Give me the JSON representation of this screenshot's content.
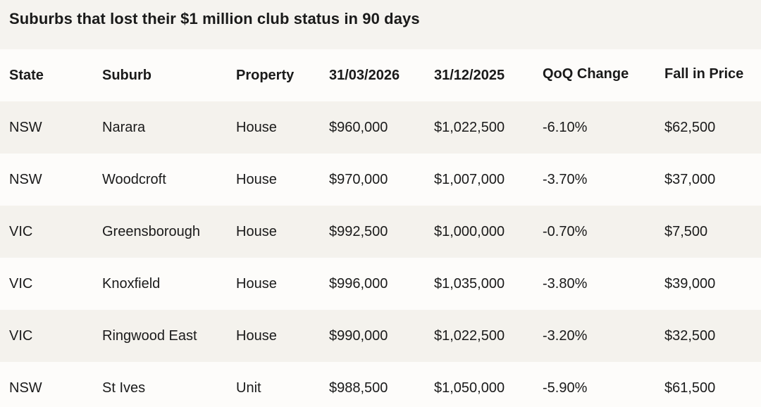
{
  "title": "Suburbs that lost their $1 million club status in 90 days",
  "columns": [
    "State",
    "Suburb",
    "Property",
    "31/03/2026",
    "31/12/2025",
    "QoQ Change",
    "Fall in Price"
  ],
  "rows": [
    [
      "NSW",
      "Narara",
      "House",
      "$960,000",
      "$1,022,500",
      "-6.10%",
      "$62,500"
    ],
    [
      "NSW",
      "Woodcroft",
      "House",
      "$970,000",
      "$1,007,000",
      "-3.70%",
      "$37,000"
    ],
    [
      "VIC",
      "Greensborough",
      "House",
      "$992,500",
      "$1,000,000",
      "-0.70%",
      "$7,500"
    ],
    [
      "VIC",
      "Knoxfield",
      "House",
      "$996,000",
      "$1,035,000",
      "-3.80%",
      "$39,000"
    ],
    [
      "VIC",
      "Ringwood East",
      "House",
      "$990,000",
      "$1,022,500",
      "-3.20%",
      "$32,500"
    ],
    [
      "NSW",
      "St Ives",
      "Unit",
      "$988,500",
      "$1,050,000",
      "-5.90%",
      "$61,500"
    ]
  ]
}
